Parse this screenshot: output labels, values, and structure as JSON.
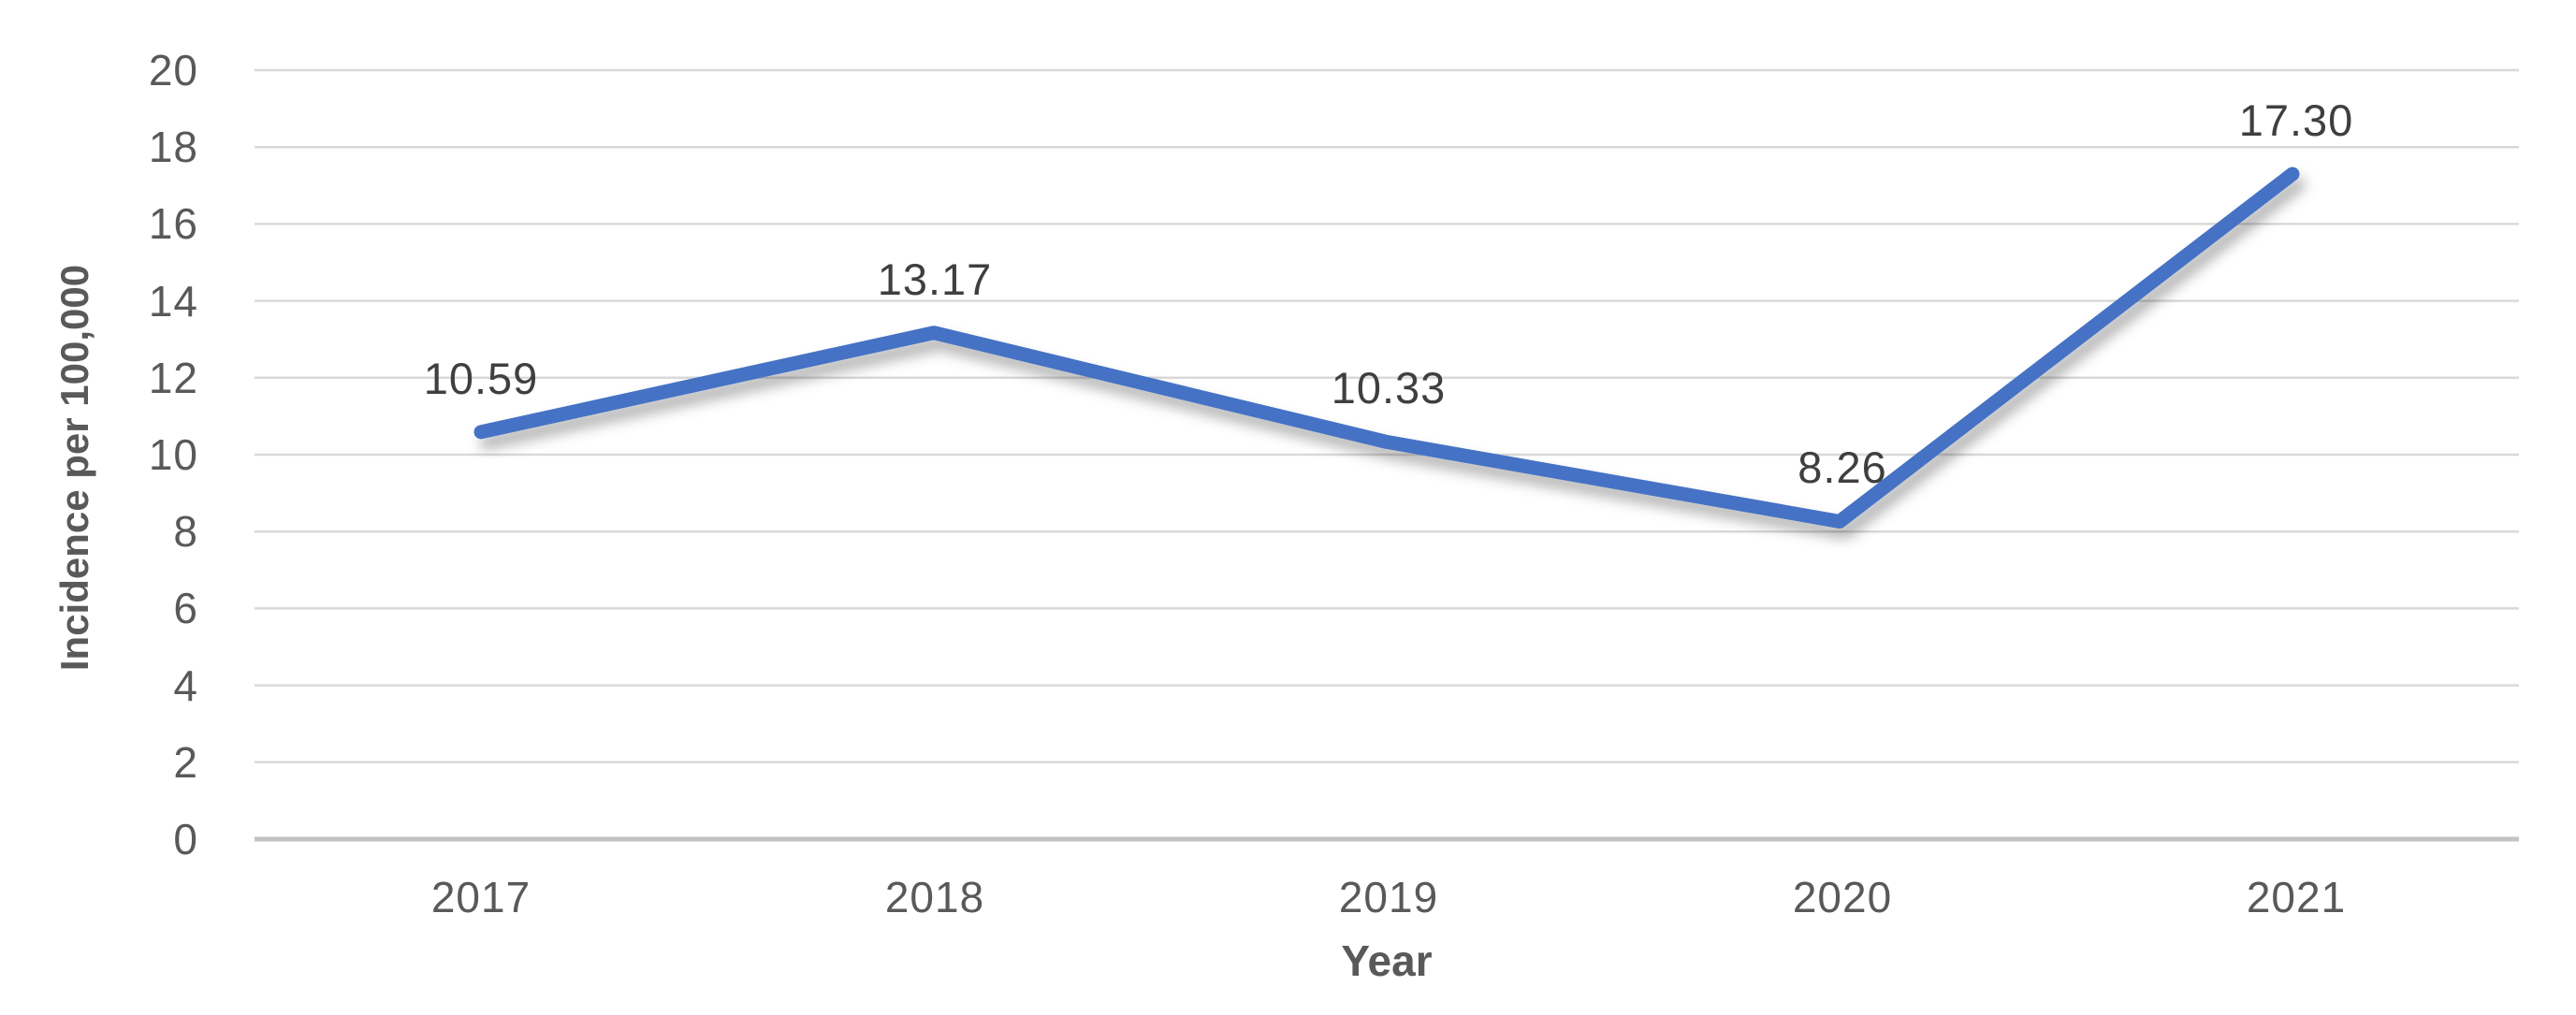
{
  "chart_data": {
    "type": "line",
    "title": "",
    "categories": [
      "2017",
      "2018",
      "2019",
      "2020",
      "2021"
    ],
    "values": [
      10.59,
      13.17,
      10.33,
      8.26,
      17.3
    ],
    "data_labels": [
      "10.59",
      "13.17",
      "10.33",
      "8.26",
      "17.30"
    ],
    "xlabel": "Year",
    "ylabel": "Incidence per 100,000",
    "ylim": [
      0,
      20
    ],
    "ytick_step": 2,
    "y_ticks_top_to_bottom": [
      "20",
      "18",
      "16",
      "14",
      "12",
      "10",
      "8",
      "6",
      "4",
      "2",
      "0"
    ],
    "grid": "horizontal",
    "legend_position": "none",
    "line_color": "#4472C4",
    "gridline_color": "#D9D9D9",
    "axis_line_color": "#C3C3C3",
    "tick_label_color": "#595959",
    "data_label_color": "#3F3F3F"
  }
}
